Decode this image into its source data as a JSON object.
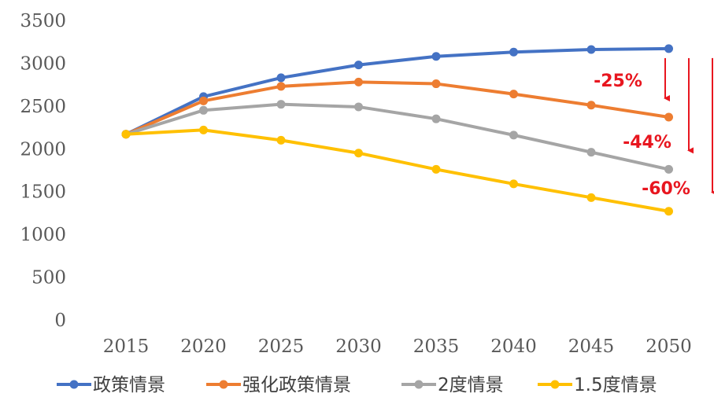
{
  "chart_data": {
    "type": "line",
    "title": "",
    "xlabel": "",
    "ylabel": "",
    "x": [
      "2015",
      "2020",
      "2025",
      "2030",
      "2035",
      "2040",
      "2045",
      "2050"
    ],
    "ylim": [
      0,
      3500
    ],
    "yticks": [
      0,
      500,
      1000,
      1500,
      2000,
      2500,
      3000,
      3500
    ],
    "grid": false,
    "legend_position": "bottom",
    "series": [
      {
        "name": "政策情景",
        "color": "#4472c4",
        "values": [
          2170,
          2610,
          2830,
          2980,
          3080,
          3130,
          3160,
          3170
        ]
      },
      {
        "name": "强化政策情景",
        "color": "#ed7d31",
        "values": [
          2170,
          2560,
          2730,
          2780,
          2760,
          2640,
          2510,
          2370
        ]
      },
      {
        "name": "2度情景",
        "color": "#a5a5a5",
        "values": [
          2170,
          2450,
          2520,
          2490,
          2350,
          2160,
          1960,
          1760
        ]
      },
      {
        "name": "1.5度情景",
        "color": "#ffc000",
        "values": [
          2170,
          2220,
          2100,
          1950,
          1760,
          1590,
          1430,
          1270
        ]
      }
    ],
    "annotations": [
      {
        "text": "-25%",
        "color": "#e8161f"
      },
      {
        "text": "-44%",
        "color": "#e8161f"
      },
      {
        "text": "-60%",
        "color": "#e8161f"
      }
    ]
  }
}
